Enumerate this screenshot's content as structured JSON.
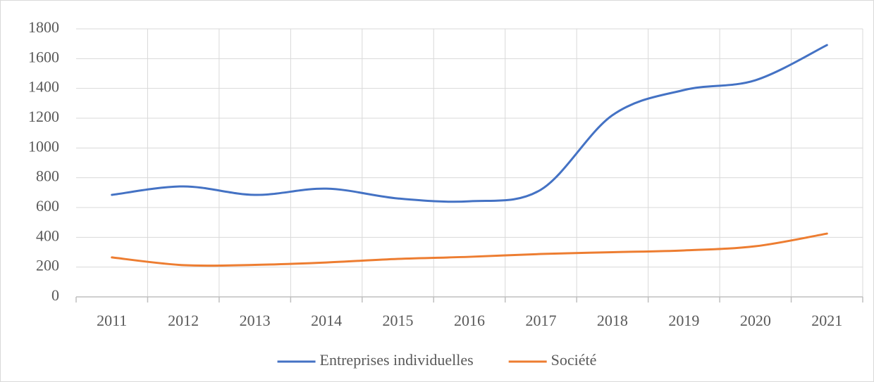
{
  "chart_data": {
    "type": "line",
    "categories": [
      "2011",
      "2012",
      "2013",
      "2014",
      "2015",
      "2016",
      "2017",
      "2018",
      "2019",
      "2020",
      "2021"
    ],
    "series": [
      {
        "name": "Entreprises individuelles",
        "color": "#4472c4",
        "values": [
          685,
          742,
          685,
          727,
          661,
          642,
          720,
          1220,
          1389,
          1455,
          1691
        ]
      },
      {
        "name": "Société",
        "color": "#ed7d31",
        "values": [
          265,
          213,
          215,
          231,
          255,
          269,
          288,
          300,
          312,
          340,
          425
        ]
      }
    ],
    "ylim": [
      0,
      1800
    ],
    "yticks": [
      0,
      200,
      400,
      600,
      800,
      1000,
      1200,
      1400,
      1600,
      1800
    ],
    "grid": true,
    "smooth": true,
    "legend": "bottom"
  }
}
